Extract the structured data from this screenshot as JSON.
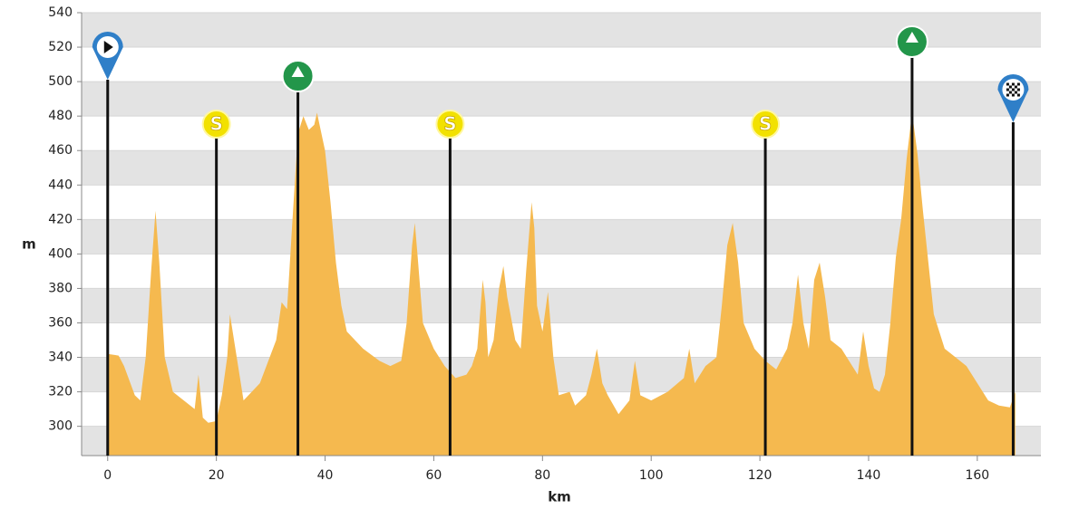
{
  "chart_data": {
    "type": "area",
    "x_label": "km",
    "y_label": "m",
    "color": "#f5b94f",
    "xlim": [
      -4.8,
      171.7
    ],
    "ylim": [
      283,
      540
    ],
    "xticks": [
      0,
      20,
      40,
      60,
      80,
      100,
      120,
      140,
      160
    ],
    "yticks": [
      300,
      320,
      340,
      360,
      380,
      400,
      420,
      440,
      460,
      480,
      500,
      520,
      540
    ],
    "grid": true,
    "x": [
      0,
      2,
      3,
      5,
      6,
      7,
      8,
      8.8,
      9.5,
      10.5,
      12,
      14,
      16,
      16.7,
      17.5,
      18.5,
      20,
      21,
      22,
      22.5,
      23.5,
      25,
      28,
      31,
      32,
      33,
      34,
      35,
      36,
      37,
      38,
      38.5,
      40,
      41,
      42,
      43,
      44,
      47,
      50,
      52,
      54,
      55,
      56,
      56.5,
      57,
      58,
      60,
      62,
      64,
      66,
      67,
      68,
      69,
      69.5,
      70,
      71,
      72,
      72.8,
      73.5,
      75,
      76,
      77,
      78,
      78.5,
      79,
      80,
      81,
      82,
      83,
      85,
      86,
      88,
      89,
      90,
      91,
      92,
      94,
      96,
      97,
      98,
      100,
      103,
      106,
      107,
      108,
      110,
      112,
      113,
      114,
      115,
      116,
      117,
      119,
      121,
      123,
      125,
      126,
      127,
      128,
      129,
      130,
      131,
      132,
      133,
      135,
      137,
      138,
      139,
      140,
      141,
      142,
      143,
      144,
      145,
      146,
      147,
      148,
      149,
      150,
      151,
      152,
      154,
      156,
      158,
      160,
      162,
      164,
      166,
      167
    ],
    "values": [
      342,
      341,
      335,
      318,
      315,
      340,
      390,
      425,
      395,
      340,
      320,
      315,
      310,
      330,
      305,
      302,
      303,
      318,
      340,
      365,
      345,
      315,
      325,
      350,
      372,
      368,
      420,
      470,
      480,
      472,
      475,
      482,
      460,
      430,
      395,
      370,
      355,
      345,
      338,
      335,
      338,
      360,
      405,
      418,
      400,
      360,
      345,
      335,
      328,
      330,
      335,
      345,
      385,
      372,
      340,
      350,
      380,
      393,
      375,
      350,
      345,
      390,
      430,
      415,
      370,
      355,
      378,
      340,
      318,
      320,
      312,
      318,
      330,
      345,
      325,
      318,
      307,
      315,
      338,
      318,
      315,
      320,
      328,
      345,
      325,
      335,
      340,
      370,
      405,
      418,
      395,
      360,
      345,
      338,
      333,
      345,
      360,
      388,
      360,
      345,
      385,
      395,
      375,
      350,
      345,
      335,
      330,
      355,
      335,
      322,
      320,
      330,
      360,
      398,
      420,
      455,
      482,
      458,
      425,
      395,
      365,
      345,
      340,
      335,
      325,
      315,
      312,
      311,
      320
    ],
    "markers": [
      {
        "x": 0,
        "kind": "start"
      },
      {
        "x": 20,
        "kind": "sprint",
        "label": "S"
      },
      {
        "x": 35,
        "kind": "climb"
      },
      {
        "x": 63,
        "kind": "sprint",
        "label": "S"
      },
      {
        "x": 121,
        "kind": "sprint",
        "label": "S"
      },
      {
        "x": 148,
        "kind": "climb"
      },
      {
        "x": 166.6,
        "kind": "finish"
      }
    ]
  }
}
